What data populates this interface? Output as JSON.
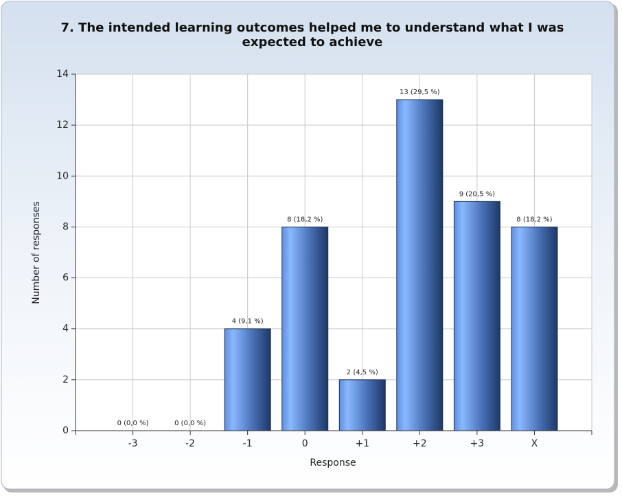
{
  "chart_data": {
    "type": "bar",
    "title": "7. The intended learning outcomes helped me to understand what I was expected to achieve",
    "x_label": "Response",
    "y_label": "Number of responses",
    "categories": [
      "-3",
      "-2",
      "-1",
      "0",
      "+1",
      "+2",
      "+3",
      "X"
    ],
    "values": [
      0,
      0,
      4,
      8,
      2,
      13,
      9,
      8
    ],
    "value_labels": [
      "0 (0,0 %)",
      "0 (0,0 %)",
      "4 (9,1 %)",
      "8 (18,2 %)",
      "2 (4,5 %)",
      "13 (29,5 %)",
      "9 (20,5 %)",
      "8 (18,2 %)"
    ],
    "color": "#4f86e0",
    "ylim": [
      0,
      14
    ],
    "yticks": [
      0,
      2,
      4,
      6,
      8,
      10,
      12,
      14
    ],
    "grid": true
  }
}
